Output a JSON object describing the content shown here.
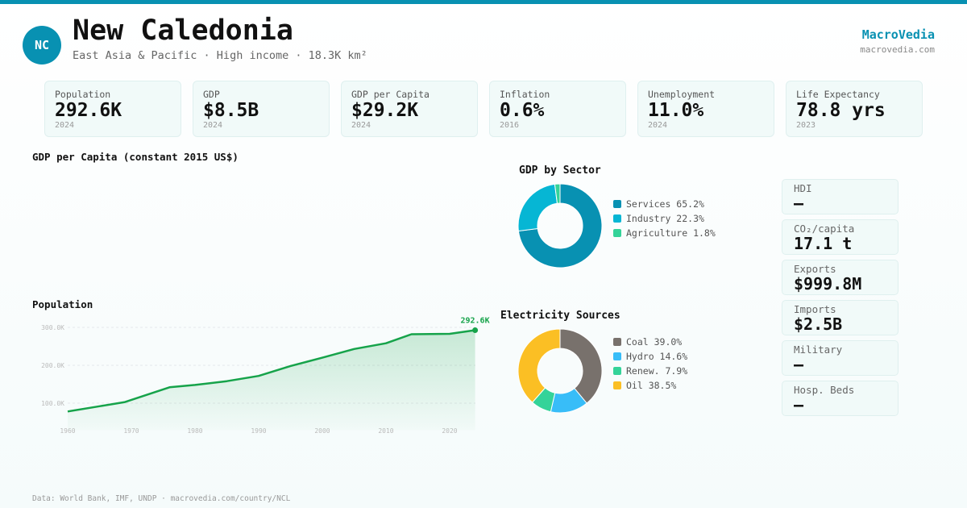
{
  "header": {
    "badge": "NC",
    "title": "New Caledonia",
    "subtitle": "East Asia & Pacific · High income · 18.3K km²",
    "brand": "MacroVedia",
    "brand_url": "macrovedia.com",
    "accent": "#0891b2"
  },
  "stats": [
    {
      "label": "Population",
      "value": "292.6K",
      "year": "2024"
    },
    {
      "label": "GDP",
      "value": "$8.5B",
      "year": "2024"
    },
    {
      "label": "GDP per Capita",
      "value": "$29.2K",
      "year": "2024"
    },
    {
      "label": "Inflation",
      "value": "0.6%",
      "year": "2016"
    },
    {
      "label": "Unemployment",
      "value": "11.0%",
      "year": "2024"
    },
    {
      "label": "Life Expectancy",
      "value": "78.8 yrs",
      "year": "2023"
    }
  ],
  "gdp_chart": {
    "title": "GDP per Capita (constant 2015 US$)"
  },
  "side": [
    {
      "label": "HDI",
      "value": "—"
    },
    {
      "label": "CO₂/capita",
      "value": "17.1 t"
    },
    {
      "label": "Exports",
      "value": "$999.8M"
    },
    {
      "label": "Imports",
      "value": "$2.5B"
    },
    {
      "label": "Military",
      "value": "—"
    },
    {
      "label": "Hosp. Beds",
      "value": "—"
    }
  ],
  "footer": "Data: World Bank, IMF, UNDP · macrovedia.com/country/NCL",
  "chart_data": [
    {
      "type": "line",
      "title": "Population",
      "x": [
        1960,
        1965,
        1969,
        1976,
        1980,
        1985,
        1990,
        1995,
        2000,
        2005,
        2010,
        2014,
        2020,
        2024
      ],
      "values": [
        78000,
        92000,
        103000,
        142000,
        148000,
        158000,
        172000,
        198000,
        220000,
        243000,
        258000,
        282000,
        283000,
        292600
      ],
      "ylim": [
        50000,
        310000
      ],
      "yticks": [
        "100.0K",
        "200.0K",
        "300.0K"
      ],
      "ytick_values": [
        100000,
        200000,
        300000
      ],
      "xticks": [
        "1960",
        "1970",
        "1980",
        "1990",
        "2000",
        "2010",
        "2020"
      ],
      "end_label": "292.6K",
      "color": "#16a34a",
      "grid": true
    },
    {
      "type": "pie",
      "title": "GDP by Sector",
      "donut": true,
      "slices": [
        {
          "name": "Services",
          "value": 65.2,
          "label": "Services 65.2%",
          "color": "#0891b2"
        },
        {
          "name": "Industry",
          "value": 22.3,
          "label": "Industry 22.3%",
          "color": "#06b6d4"
        },
        {
          "name": "Agriculture",
          "value": 1.8,
          "label": "Agriculture 1.8%",
          "color": "#34d399"
        }
      ]
    },
    {
      "type": "pie",
      "title": "Electricity Sources",
      "donut": true,
      "slices": [
        {
          "name": "Coal",
          "value": 39.0,
          "label": "Coal 39.0%",
          "color": "#78716c"
        },
        {
          "name": "Hydro",
          "value": 14.6,
          "label": "Hydro 14.6%",
          "color": "#38bdf8"
        },
        {
          "name": "Renew.",
          "value": 7.9,
          "label": "Renew. 7.9%",
          "color": "#34d399"
        },
        {
          "name": "Oil",
          "value": 38.5,
          "label": "Oil 38.5%",
          "color": "#fbbf24"
        }
      ]
    }
  ]
}
